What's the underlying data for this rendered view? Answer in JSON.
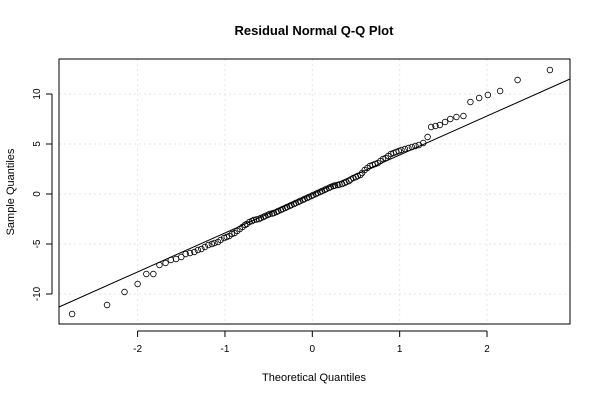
{
  "chart_data": {
    "type": "scatter",
    "title": "Residual Normal Q-Q Plot",
    "xlabel": "Theoretical Quantiles",
    "ylabel": "Sample Quantiles",
    "xlim": [
      -2.9,
      2.95
    ],
    "ylim": [
      -13,
      13.5
    ],
    "xticks": [
      -2,
      -1,
      0,
      1,
      2
    ],
    "yticks": [
      -10,
      -5,
      0,
      5,
      10
    ],
    "grid": true,
    "reference_line": {
      "x": [
        -2.9,
        2.95
      ],
      "y": [
        -11.3,
        11.5
      ]
    },
    "points": [
      [
        -2.75,
        -12.0
      ],
      [
        -2.35,
        -11.1
      ],
      [
        -2.15,
        -9.8
      ],
      [
        -2.0,
        -9.0
      ],
      [
        -1.9,
        -8.0
      ],
      [
        -1.82,
        -8.0
      ],
      [
        -1.75,
        -7.1
      ],
      [
        -1.68,
        -6.9
      ],
      [
        -1.62,
        -6.6
      ],
      [
        -1.56,
        -6.5
      ],
      [
        -1.5,
        -6.3
      ],
      [
        -1.45,
        -6.0
      ],
      [
        -1.4,
        -5.9
      ],
      [
        -1.35,
        -5.8
      ],
      [
        -1.31,
        -5.6
      ],
      [
        -1.27,
        -5.5
      ],
      [
        -1.23,
        -5.3
      ],
      [
        -1.19,
        -5.1
      ],
      [
        -1.15,
        -5.0
      ],
      [
        -1.12,
        -4.9
      ],
      [
        -1.08,
        -4.8
      ],
      [
        -1.05,
        -4.6
      ],
      [
        -1.01,
        -4.4
      ],
      [
        -0.98,
        -4.3
      ],
      [
        -0.95,
        -4.2
      ],
      [
        -0.92,
        -4.0
      ],
      [
        -0.89,
        -3.9
      ],
      [
        -0.86,
        -3.7
      ],
      [
        -0.83,
        -3.5
      ],
      [
        -0.8,
        -3.3
      ],
      [
        -0.77,
        -3.1
      ],
      [
        -0.75,
        -3.0
      ],
      [
        -0.72,
        -2.8
      ],
      [
        -0.69,
        -2.7
      ],
      [
        -0.67,
        -2.6
      ],
      [
        -0.64,
        -2.55
      ],
      [
        -0.61,
        -2.5
      ],
      [
        -0.59,
        -2.4
      ],
      [
        -0.56,
        -2.3
      ],
      [
        -0.54,
        -2.2
      ],
      [
        -0.51,
        -2.1
      ],
      [
        -0.49,
        -2.0
      ],
      [
        -0.46,
        -1.95
      ],
      [
        -0.44,
        -1.9
      ],
      [
        -0.41,
        -1.8
      ],
      [
        -0.39,
        -1.7
      ],
      [
        -0.36,
        -1.6
      ],
      [
        -0.34,
        -1.5
      ],
      [
        -0.31,
        -1.4
      ],
      [
        -0.29,
        -1.3
      ],
      [
        -0.26,
        -1.2
      ],
      [
        -0.24,
        -1.1
      ],
      [
        -0.21,
        -1.0
      ],
      [
        -0.19,
        -0.9
      ],
      [
        -0.16,
        -0.8
      ],
      [
        -0.14,
        -0.7
      ],
      [
        -0.11,
        -0.6
      ],
      [
        -0.09,
        -0.5
      ],
      [
        -0.06,
        -0.4
      ],
      [
        -0.04,
        -0.3
      ],
      [
        -0.01,
        -0.2
      ],
      [
        0.01,
        -0.1
      ],
      [
        0.04,
        0.0
      ],
      [
        0.06,
        0.1
      ],
      [
        0.09,
        0.2
      ],
      [
        0.11,
        0.3
      ],
      [
        0.14,
        0.4
      ],
      [
        0.16,
        0.5
      ],
      [
        0.19,
        0.6
      ],
      [
        0.21,
        0.7
      ],
      [
        0.24,
        0.8
      ],
      [
        0.26,
        0.85
      ],
      [
        0.29,
        0.9
      ],
      [
        0.31,
        0.95
      ],
      [
        0.34,
        1.0
      ],
      [
        0.37,
        1.1
      ],
      [
        0.39,
        1.2
      ],
      [
        0.42,
        1.3
      ],
      [
        0.44,
        1.45
      ],
      [
        0.47,
        1.6
      ],
      [
        0.5,
        1.7
      ],
      [
        0.52,
        1.8
      ],
      [
        0.55,
        1.9
      ],
      [
        0.57,
        2.1
      ],
      [
        0.6,
        2.4
      ],
      [
        0.63,
        2.6
      ],
      [
        0.66,
        2.8
      ],
      [
        0.69,
        2.9
      ],
      [
        0.72,
        3.0
      ],
      [
        0.75,
        3.1
      ],
      [
        0.78,
        3.3
      ],
      [
        0.81,
        3.5
      ],
      [
        0.84,
        3.6
      ],
      [
        0.87,
        3.8
      ],
      [
        0.9,
        4.0
      ],
      [
        0.93,
        4.1
      ],
      [
        0.96,
        4.2
      ],
      [
        0.99,
        4.3
      ],
      [
        1.02,
        4.4
      ],
      [
        1.06,
        4.5
      ],
      [
        1.1,
        4.6
      ],
      [
        1.14,
        4.7
      ],
      [
        1.18,
        4.8
      ],
      [
        1.22,
        4.9
      ],
      [
        1.27,
        5.1
      ],
      [
        1.32,
        5.7
      ],
      [
        1.36,
        6.7
      ],
      [
        1.41,
        6.8
      ],
      [
        1.46,
        6.9
      ],
      [
        1.52,
        7.2
      ],
      [
        1.58,
        7.5
      ],
      [
        1.65,
        7.7
      ],
      [
        1.73,
        7.8
      ],
      [
        1.81,
        9.2
      ],
      [
        1.91,
        9.6
      ],
      [
        2.01,
        9.9
      ],
      [
        2.15,
        10.3
      ],
      [
        2.35,
        11.4
      ],
      [
        2.72,
        12.4
      ]
    ]
  }
}
